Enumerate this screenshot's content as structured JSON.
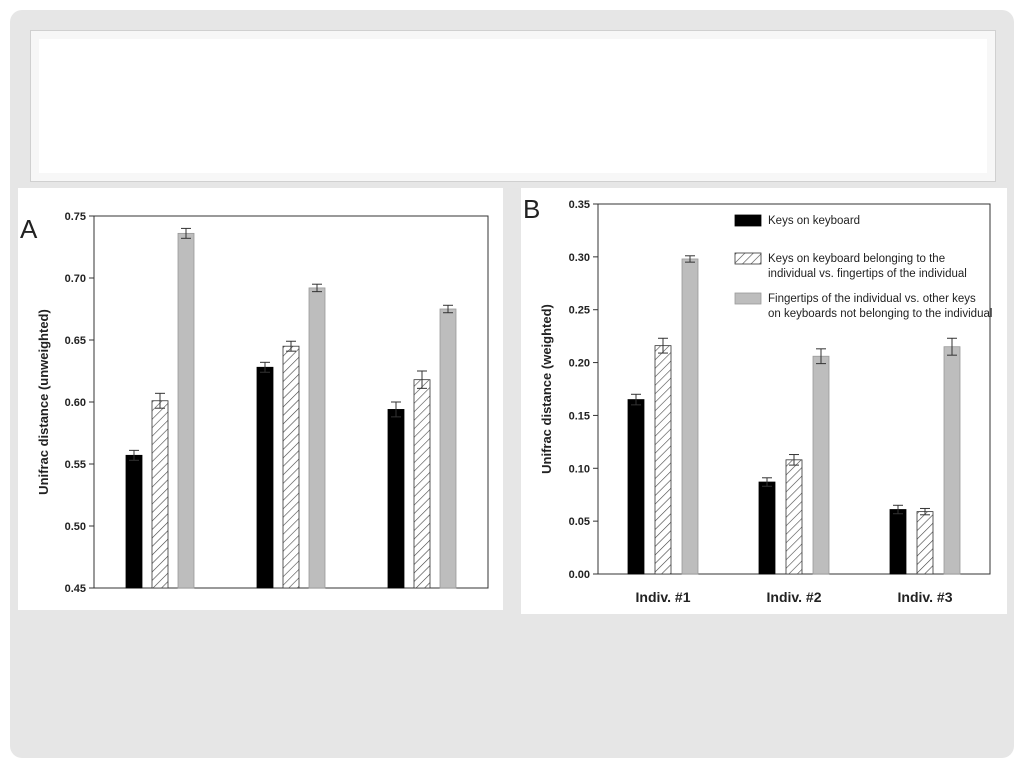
{
  "slide": {
    "title": ""
  },
  "chart_data": [
    {
      "type": "bar",
      "panel_label": "A",
      "ylabel": "Unifrac distance (unweighted)",
      "ylim": [
        0.45,
        0.75
      ],
      "yticks": [
        "0.45",
        "0.50",
        "0.55",
        "0.60",
        "0.65",
        "0.70",
        "0.75"
      ],
      "categories": [
        "",
        "",
        ""
      ],
      "series": [
        {
          "style": "black",
          "values": [
            0.557,
            0.628,
            0.594
          ],
          "errors": [
            0.004,
            0.004,
            0.006
          ]
        },
        {
          "style": "hatched",
          "values": [
            0.601,
            0.645,
            0.618
          ],
          "errors": [
            0.006,
            0.004,
            0.007
          ]
        },
        {
          "style": "gray",
          "values": [
            0.736,
            0.692,
            0.675
          ],
          "errors": [
            0.004,
            0.003,
            0.003
          ]
        }
      ],
      "grid": false
    },
    {
      "type": "bar",
      "panel_label": "B",
      "ylabel": "Unifrac distance (weighted)",
      "ylim": [
        0.0,
        0.35
      ],
      "yticks": [
        "0.00",
        "0.05",
        "0.10",
        "0.15",
        "0.20",
        "0.25",
        "0.30",
        "0.35"
      ],
      "categories": [
        "Indiv. #1",
        "Indiv. #2",
        "Indiv. #3"
      ],
      "series": [
        {
          "name": "Keys on keyboard",
          "style": "black",
          "values": [
            0.165,
            0.087,
            0.061
          ],
          "errors": [
            0.005,
            0.004,
            0.004
          ]
        },
        {
          "name": "Keys on keyboard belonging to the individual  vs. fingertips of the individual",
          "style": "hatched",
          "values": [
            0.216,
            0.108,
            0.059
          ],
          "errors": [
            0.007,
            0.005,
            0.003
          ]
        },
        {
          "name": "Fingertips of the individual  vs. other keys on keyboards not belonging to the individual",
          "style": "gray",
          "values": [
            0.298,
            0.206,
            0.215
          ],
          "errors": [
            0.003,
            0.007,
            0.008
          ]
        }
      ],
      "legend": {
        "position": "top-right",
        "lines": [
          [
            "Keys on keyboard"
          ],
          [
            "Keys on keyboard belonging to the",
            "individual  vs. fingertips of the individual"
          ],
          [
            "Fingertips of the individual  vs. other keys",
            "on keyboards not belonging to the individual"
          ]
        ]
      },
      "grid": false
    }
  ]
}
